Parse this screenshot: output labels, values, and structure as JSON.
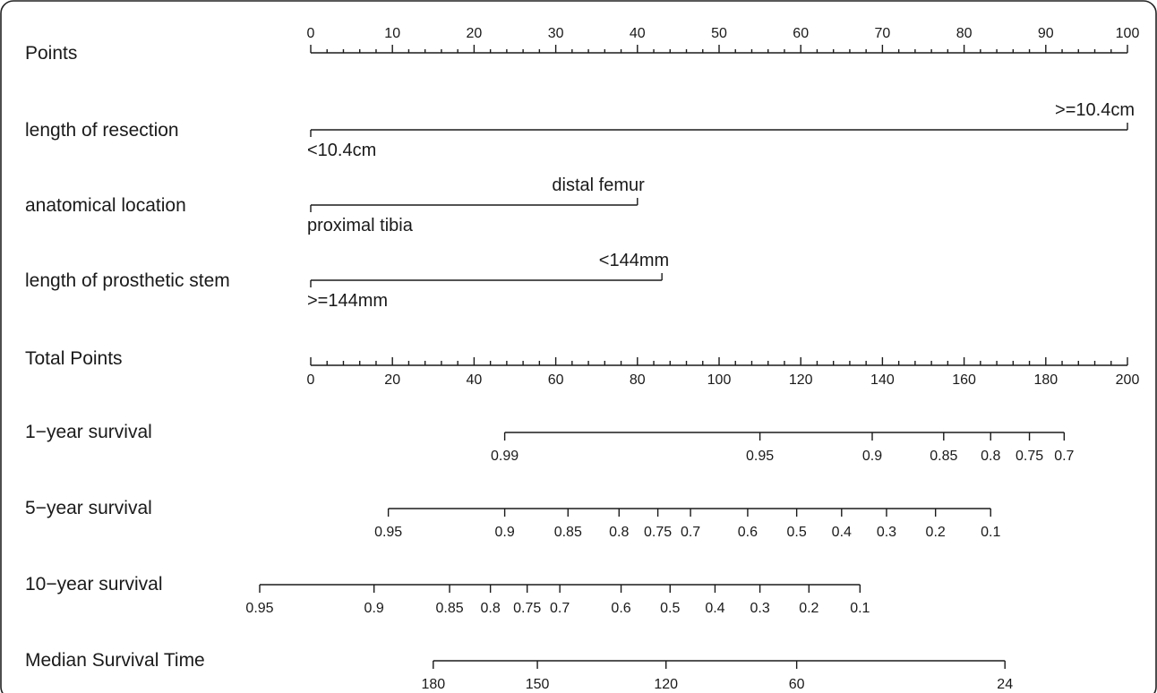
{
  "chart_data": {
    "type": "nomogram",
    "points_axis": {
      "label": "Points",
      "range": [
        0,
        100
      ],
      "major_ticks": [
        0,
        10,
        20,
        30,
        40,
        50,
        60,
        70,
        80,
        90,
        100
      ],
      "minor_step": 2
    },
    "predictors": [
      {
        "label": "length of resection",
        "levels": [
          {
            "name": "<10.4cm",
            "points": 0
          },
          {
            "name": ">=10.4cm",
            "points": 100
          }
        ]
      },
      {
        "label": "anatomical  location",
        "levels": [
          {
            "name": "proximal tibia",
            "points": 0
          },
          {
            "name": "distal femur",
            "points": 40
          }
        ]
      },
      {
        "label": "length  of  prosthetic  stem",
        "levels": [
          {
            "name": ">=144mm",
            "points": 0
          },
          {
            "name": "<144mm",
            "points": 43
          }
        ]
      }
    ],
    "total_points_axis": {
      "label": "Total Points",
      "range": [
        0,
        200
      ],
      "major_ticks": [
        0,
        20,
        40,
        60,
        80,
        100,
        120,
        140,
        160,
        180,
        200
      ],
      "minor_step": 4
    },
    "outcome_scales": [
      {
        "label": "1−year survival",
        "ticks": [
          {
            "label": "0.99",
            "total_points": 47.5
          },
          {
            "label": "0.95",
            "total_points": 110
          },
          {
            "label": "0.9",
            "total_points": 137.5
          },
          {
            "label": "0.85",
            "total_points": 155
          },
          {
            "label": "0.8",
            "total_points": 166.5
          },
          {
            "label": "0.75",
            "total_points": 176
          },
          {
            "label": "0.7",
            "total_points": 184.5
          }
        ]
      },
      {
        "label": "5−year survival",
        "ticks": [
          {
            "label": "0.95",
            "total_points": 19
          },
          {
            "label": "0.9",
            "total_points": 47.5
          },
          {
            "label": "0.85",
            "total_points": 63
          },
          {
            "label": "0.8",
            "total_points": 75.5
          },
          {
            "label": "0.75",
            "total_points": 85
          },
          {
            "label": "0.7",
            "total_points": 93
          },
          {
            "label": "0.6",
            "total_points": 107
          },
          {
            "label": "0.5",
            "total_points": 119
          },
          {
            "label": "0.4",
            "total_points": 130
          },
          {
            "label": "0.3",
            "total_points": 141
          },
          {
            "label": "0.2",
            "total_points": 153
          },
          {
            "label": "0.1",
            "total_points": 166.5
          }
        ]
      },
      {
        "label": "10−year survival",
        "ticks": [
          {
            "label": "0.95",
            "total_points": -12.5
          },
          {
            "label": "0.9",
            "total_points": 15.5
          },
          {
            "label": "0.85",
            "total_points": 34
          },
          {
            "label": "0.8",
            "total_points": 44
          },
          {
            "label": "0.75",
            "total_points": 53
          },
          {
            "label": "0.7",
            "total_points": 61
          },
          {
            "label": "0.6",
            "total_points": 76
          },
          {
            "label": "0.5",
            "total_points": 88
          },
          {
            "label": "0.4",
            "total_points": 99
          },
          {
            "label": "0.3",
            "total_points": 110
          },
          {
            "label": "0.2",
            "total_points": 122
          },
          {
            "label": "0.1",
            "total_points": 134.5
          }
        ]
      },
      {
        "label": "Median Survival Time",
        "ticks": [
          {
            "label": "180",
            "total_points": 30
          },
          {
            "label": "150",
            "total_points": 55.5
          },
          {
            "label": "120",
            "total_points": 87
          },
          {
            "label": "60",
            "total_points": 119
          },
          {
            "label": "24",
            "total_points": 170
          }
        ]
      }
    ],
    "colors": {
      "ink": "#1a1a1a",
      "background": "#ffffff",
      "frame": "#222222"
    }
  }
}
